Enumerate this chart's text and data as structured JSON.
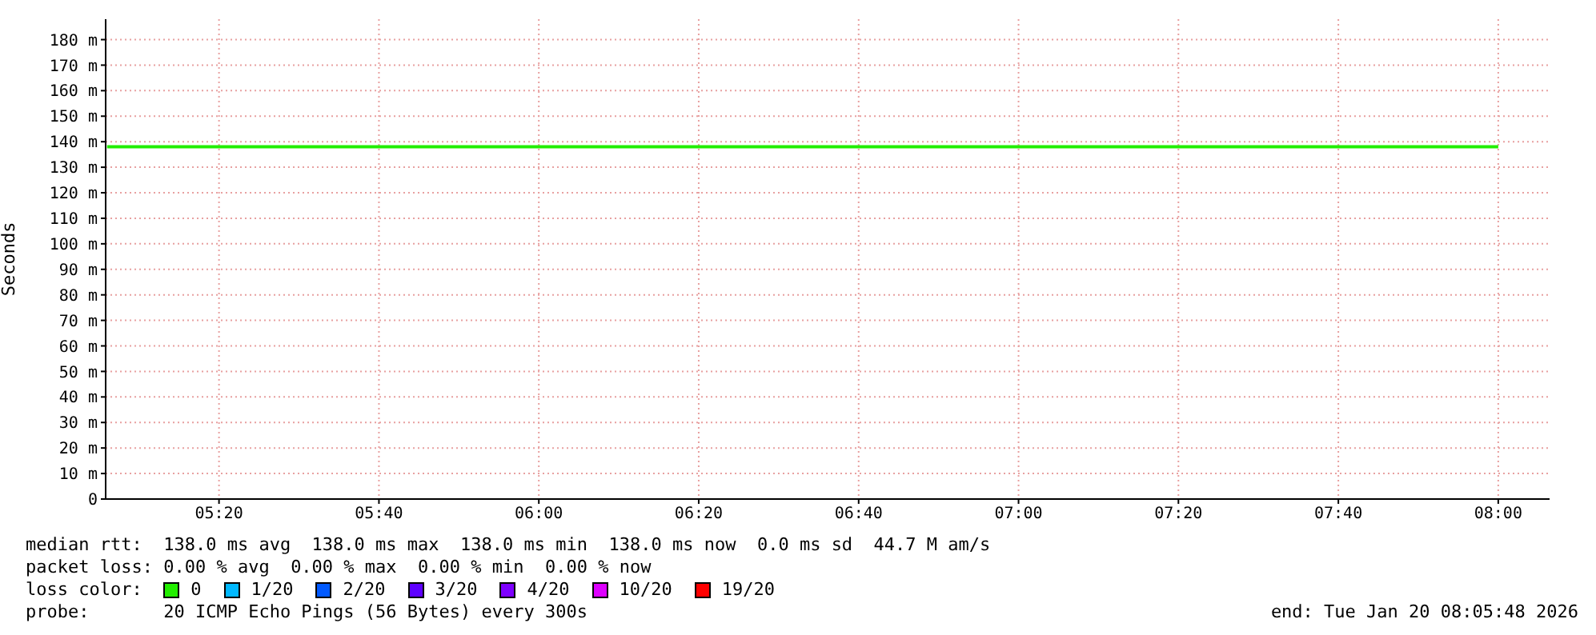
{
  "chart_data": {
    "type": "line",
    "ylabel": "Seconds",
    "legend_title": "loss color:",
    "x": [
      5.1,
      8.0
    ],
    "series": [
      {
        "name": "0",
        "color": "#22ee00",
        "values": [
          138,
          138
        ]
      },
      {
        "name": "1/20",
        "color": "#00b8ff",
        "values": [
          null,
          null
        ]
      },
      {
        "name": "2/20",
        "color": "#0059ff",
        "values": [
          null,
          null
        ]
      },
      {
        "name": "3/20",
        "color": "#5e00ff",
        "values": [
          null,
          null
        ]
      },
      {
        "name": "4/20",
        "color": "#7e00ff",
        "values": [
          null,
          null
        ]
      },
      {
        "name": "10/20",
        "color": "#dd00ff",
        "values": [
          null,
          null
        ]
      },
      {
        "name": "19/20",
        "color": "#ff0000",
        "values": [
          null,
          null
        ]
      }
    ],
    "xlim": [
      5.097,
      8.107
    ],
    "xticks": [
      {
        "value": 5.3333,
        "label": "05:20"
      },
      {
        "value": 5.6667,
        "label": "05:40"
      },
      {
        "value": 6,
        "label": "06:00"
      },
      {
        "value": 6.3333,
        "label": "06:20"
      },
      {
        "value": 6.6667,
        "label": "06:40"
      },
      {
        "value": 7,
        "label": "07:00"
      },
      {
        "value": 7.3333,
        "label": "07:20"
      },
      {
        "value": 7.6667,
        "label": "07:40"
      },
      {
        "value": 8,
        "label": "08:00"
      }
    ],
    "ylim": [
      0,
      188
    ],
    "yticks": [
      0,
      {
        "value": 10,
        "label": "10 m"
      },
      {
        "value": 20,
        "label": "20 m"
      },
      {
        "value": 30,
        "label": "30 m"
      },
      {
        "value": 40,
        "label": "40 m"
      },
      {
        "value": 50,
        "label": "50 m"
      },
      {
        "value": 60,
        "label": "60 m"
      },
      {
        "value": 70,
        "label": "70 m"
      },
      {
        "value": 80,
        "label": "80 m"
      },
      {
        "value": 90,
        "label": "90 m"
      },
      {
        "value": 100,
        "label": "100 m"
      },
      {
        "value": 110,
        "label": "110 m"
      },
      {
        "value": 120,
        "label": "120 m"
      },
      {
        "value": 130,
        "label": "130 m"
      },
      {
        "value": 140,
        "label": "140 m"
      },
      {
        "value": 150,
        "label": "150 m"
      },
      {
        "value": 160,
        "label": "160 m"
      },
      {
        "value": 170,
        "label": "170 m"
      },
      {
        "value": 180,
        "label": "180 m"
      }
    ],
    "grid": true,
    "legend": "bottom",
    "marker": "none",
    "line_style": "solid",
    "annotations": [
      "median rtt:  138.0 ms avg  138.0 ms max  138.0 ms min  138.0 ms now  0.0 ms sd  44.7 M am/s",
      "packet loss: 0.00 % avg  0.00 % max  0.00 % min  0.00 % now",
      "probe:       20 ICMP Echo Pings (56 Bytes) every 300s",
      "end: Tue Jan 20 08:05:48 2026"
    ]
  }
}
